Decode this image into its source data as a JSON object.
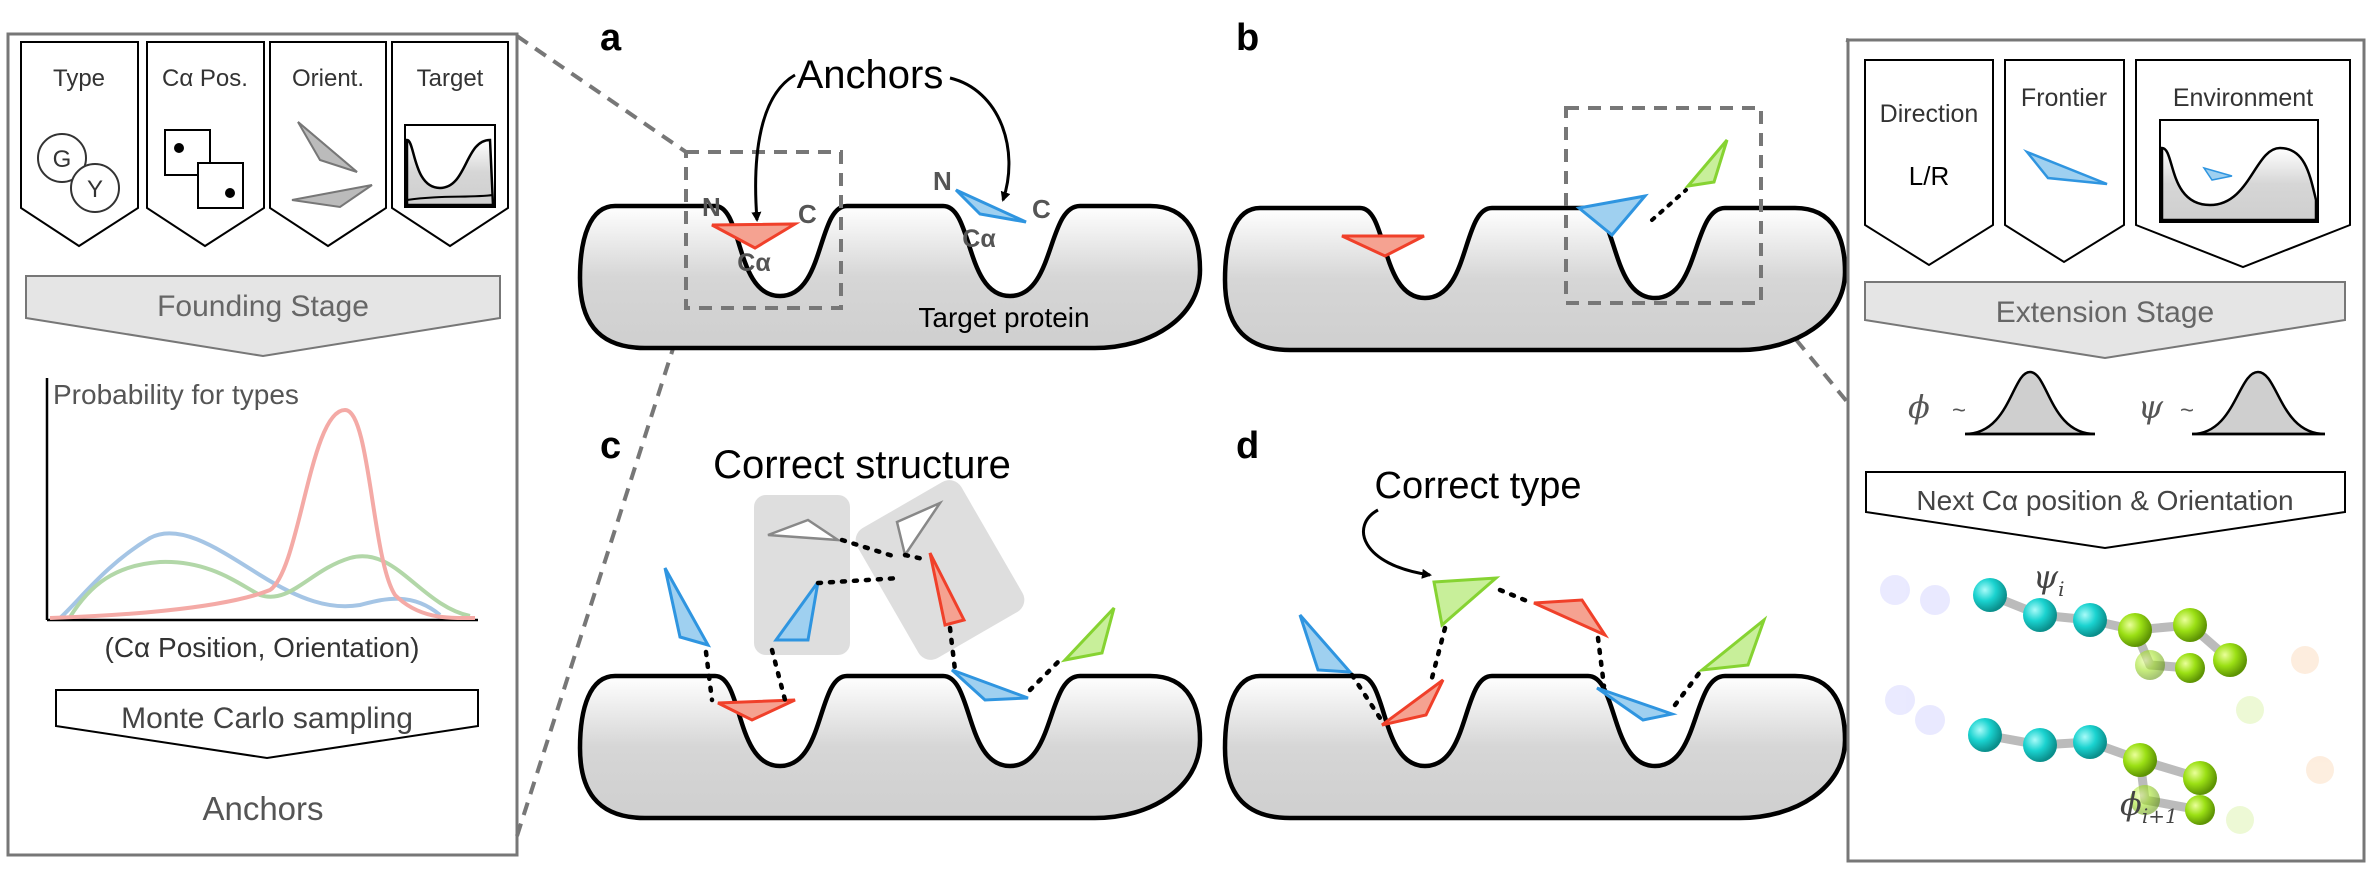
{
  "left_panel": {
    "cards": [
      "Type",
      "Cα Pos.",
      "Orient.",
      "Target"
    ],
    "type_circles": [
      "G",
      "Y"
    ],
    "founding_stage": "Founding Stage",
    "prob_label": "Probability for types",
    "x_label": "(Cα Position, Orientation)",
    "monte_carlo": "Monte Carlo sampling",
    "anchors": "Anchors"
  },
  "panel_a": {
    "letter": "a",
    "anchors_label": "Anchors",
    "n1": "N",
    "c1": "C",
    "ca1": "Cα",
    "n2": "N",
    "c2": "C",
    "ca2": "Cα",
    "target": "Target protein"
  },
  "panel_b": {
    "letter": "b"
  },
  "panel_c": {
    "letter": "c",
    "label": "Correct structure"
  },
  "panel_d": {
    "letter": "d",
    "label": "Correct type"
  },
  "right_panel": {
    "cards": [
      "Direction",
      "Frontier",
      "Environment"
    ],
    "direction_value": "L/R",
    "extension_stage": "Extension Stage",
    "phi": "ϕ",
    "psi": "ψ",
    "tilde": "~",
    "next_label": "Next Cα position & Orientation",
    "psi_i": "ψi",
    "phi_i1": "ϕi+1"
  },
  "colors": {
    "red": "#f0402a",
    "blue": "#2f95e0",
    "green": "#86d332",
    "cyan": "#1ad3d0",
    "lime": "#9be014",
    "gray": "#d8d8d8"
  }
}
